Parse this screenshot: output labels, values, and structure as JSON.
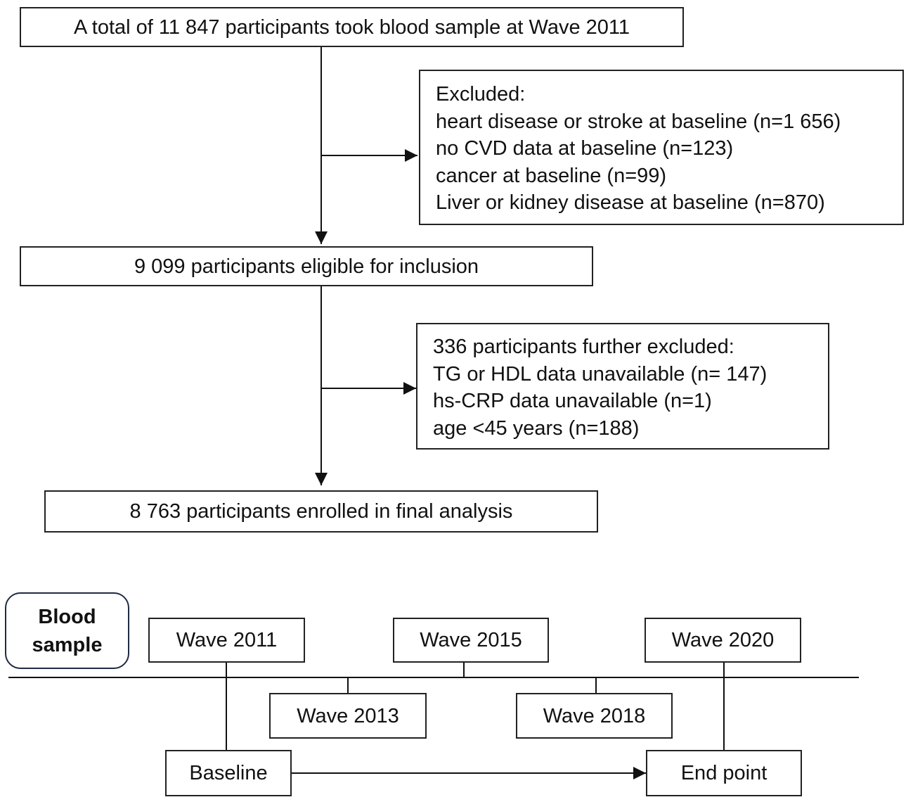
{
  "flowchart": {
    "start": "A total of 11 847 participants took blood sample at Wave 2011",
    "exclusion1": {
      "heading": "Excluded:",
      "items": [
        "heart disease or stroke at baseline (n=1 656)",
        "no CVD data at baseline (n=123)",
        "cancer at baseline (n=99)",
        "Liver or kidney disease at baseline (n=870)"
      ]
    },
    "eligible": "9 099 participants eligible for inclusion",
    "exclusion2": {
      "heading": "336 participants further excluded:",
      "items": [
        "TG or HDL data unavailable (n= 147)",
        "hs-CRP data unavailable (n=1)",
        "age <45 years (n=188)"
      ]
    },
    "final": "8 763 participants enrolled in final analysis"
  },
  "timeline": {
    "blood_sample_line1": "Blood",
    "blood_sample_line2": "sample",
    "waves": {
      "w2011": "Wave 2011",
      "w2013": "Wave 2013",
      "w2015": "Wave 2015",
      "w2018": "Wave 2018",
      "w2020": "Wave 2020"
    },
    "baseline": "Baseline",
    "endpoint": "End point"
  }
}
